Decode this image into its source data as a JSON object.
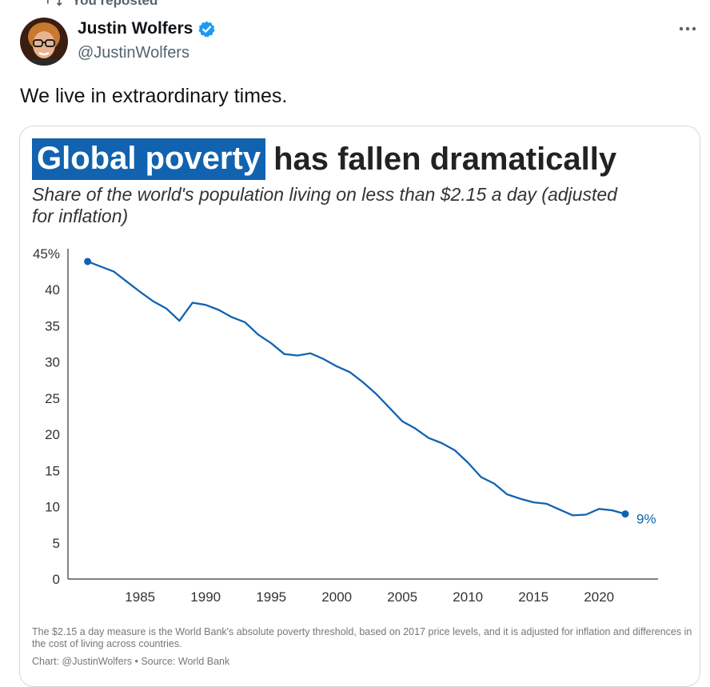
{
  "repost": {
    "label": "You reposted",
    "icon": "repost-icon"
  },
  "author": {
    "name": "Justin Wolfers",
    "handle": "@JustinWolfers",
    "verified_icon": "verified-badge-icon",
    "avatar_icon": "avatar",
    "badge_color": "#1d9bf0"
  },
  "menu": {
    "icon": "more-icon"
  },
  "tweet": {
    "text": "We live in extraordinary times."
  },
  "chart_data": {
    "type": "line",
    "title_highlight": "Global poverty",
    "title_rest": "has fallen dramatically",
    "subtitle": "Share of the world's population living on less than $2.15 a day (adjusted for inflation)",
    "xlabel": "",
    "ylabel": "",
    "xlim": [
      1979.5,
      2024.5
    ],
    "ylim": [
      0,
      45
    ],
    "x_ticks": [
      1985,
      1990,
      1995,
      2000,
      2005,
      2010,
      2015,
      2020
    ],
    "x_tick_labels": [
      "1985",
      "1990",
      "1995",
      "2000",
      "2005",
      "2010",
      "2015",
      "2020"
    ],
    "y_ticks": [
      0,
      5,
      10,
      15,
      20,
      25,
      30,
      35,
      40,
      45
    ],
    "y_tick_labels": [
      "0",
      "5",
      "10",
      "15",
      "20",
      "25",
      "30",
      "35",
      "40",
      "45%"
    ],
    "series": [
      {
        "name": "Global poverty rate",
        "color": "#1163b0",
        "x": [
          1981,
          1982,
          1983,
          1984,
          1985,
          1986,
          1987,
          1988,
          1989,
          1990,
          1991,
          1992,
          1993,
          1994,
          1995,
          1996,
          1997,
          1998,
          1999,
          2000,
          2001,
          2002,
          2003,
          2004,
          2005,
          2006,
          2007,
          2008,
          2009,
          2010,
          2011,
          2012,
          2013,
          2014,
          2015,
          2016,
          2017,
          2018,
          2019,
          2020,
          2021,
          2022
        ],
        "values": [
          43.9,
          43.2,
          42.5,
          41.1,
          39.7,
          38.4,
          37.4,
          35.7,
          38.2,
          37.9,
          37.2,
          36.2,
          35.5,
          33.8,
          32.6,
          31.1,
          30.9,
          31.2,
          30.4,
          29.4,
          28.6,
          27.2,
          25.6,
          23.7,
          21.8,
          20.8,
          19.5,
          18.8,
          17.8,
          16.1,
          14.1,
          13.2,
          11.7,
          11.1,
          10.6,
          10.4,
          9.6,
          8.8,
          8.9,
          9.7,
          9.5,
          9.0
        ]
      }
    ],
    "end_label": "9%",
    "note": "The $2.15 a day measure is the World Bank's absolute poverty threshold, based on 2017 price levels, and it is adjusted for inflation and differences in the cost of living across countries.",
    "credit": "Chart: @JustinWolfers • Source: World Bank"
  }
}
